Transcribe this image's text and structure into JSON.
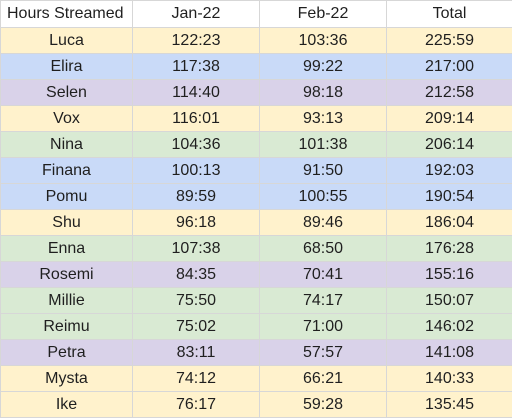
{
  "table": {
    "headers": [
      "Hours Streamed",
      "Jan-22",
      "Feb-22",
      "Total"
    ],
    "colors": {
      "yellow": "#fff2cc",
      "blue": "#c9daf8",
      "purple": "#d9d2e9",
      "green": "#d9ead3"
    },
    "rows": [
      {
        "name": "Luca",
        "jan": "122:23",
        "feb": "103:36",
        "total": "225:59",
        "color": "#fff2cc"
      },
      {
        "name": "Elira",
        "jan": "117:38",
        "feb": "99:22",
        "total": "217:00",
        "color": "#c9daf8"
      },
      {
        "name": "Selen",
        "jan": "114:40",
        "feb": "98:18",
        "total": "212:58",
        "color": "#d9d2e9"
      },
      {
        "name": "Vox",
        "jan": "116:01",
        "feb": "93:13",
        "total": "209:14",
        "color": "#fff2cc"
      },
      {
        "name": "Nina",
        "jan": "104:36",
        "feb": "101:38",
        "total": "206:14",
        "color": "#d9ead3"
      },
      {
        "name": "Finana",
        "jan": "100:13",
        "feb": "91:50",
        "total": "192:03",
        "color": "#c9daf8"
      },
      {
        "name": "Pomu",
        "jan": "89:59",
        "feb": "100:55",
        "total": "190:54",
        "color": "#c9daf8"
      },
      {
        "name": "Shu",
        "jan": "96:18",
        "feb": "89:46",
        "total": "186:04",
        "color": "#fff2cc"
      },
      {
        "name": "Enna",
        "jan": "107:38",
        "feb": "68:50",
        "total": "176:28",
        "color": "#d9ead3"
      },
      {
        "name": "Rosemi",
        "jan": "84:35",
        "feb": "70:41",
        "total": "155:16",
        "color": "#d9d2e9"
      },
      {
        "name": "Millie",
        "jan": "75:50",
        "feb": "74:17",
        "total": "150:07",
        "color": "#d9ead3"
      },
      {
        "name": "Reimu",
        "jan": "75:02",
        "feb": "71:00",
        "total": "146:02",
        "color": "#d9ead3"
      },
      {
        "name": "Petra",
        "jan": "83:11",
        "feb": "57:57",
        "total": "141:08",
        "color": "#d9d2e9"
      },
      {
        "name": "Mysta",
        "jan": "74:12",
        "feb": "66:21",
        "total": "140:33",
        "color": "#fff2cc"
      },
      {
        "name": "Ike",
        "jan": "76:17",
        "feb": "59:28",
        "total": "135:45",
        "color": "#fff2cc"
      }
    ]
  }
}
